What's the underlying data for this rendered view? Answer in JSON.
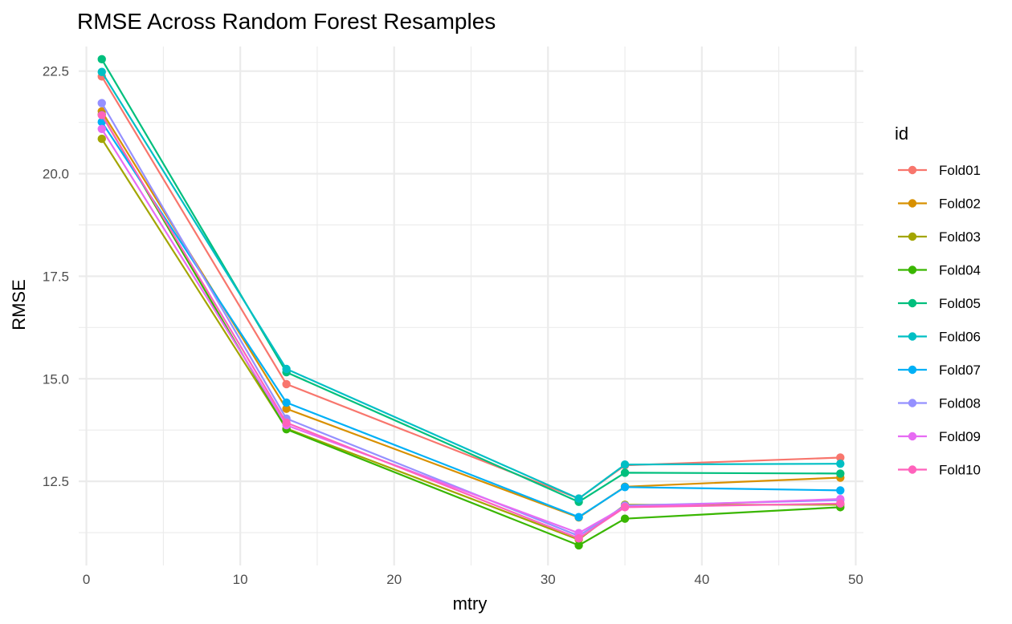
{
  "chart_data": {
    "type": "line",
    "title": "RMSE Across Random Forest Resamples",
    "xlabel": "mtry",
    "ylabel": "RMSE",
    "x": [
      1,
      13,
      32,
      35,
      49
    ],
    "xlim": [
      -0.5,
      50.5
    ],
    "ylim": [
      10.45,
      23.1
    ],
    "x_ticks": [
      0,
      10,
      20,
      30,
      40,
      50
    ],
    "x_minor_ticks": [
      5,
      15,
      25,
      35,
      45
    ],
    "y_ticks": [
      12.5,
      15.0,
      17.5,
      20.0,
      22.5
    ],
    "y_tick_labels": [
      "12.5",
      "15.0",
      "17.5",
      "20.0",
      "22.5"
    ],
    "y_minor_ticks": [
      11.25,
      13.75,
      16.25,
      18.75,
      21.25
    ],
    "grid": true,
    "legend": {
      "title": "id",
      "placement": "right"
    },
    "series": [
      {
        "name": "Fold01",
        "color": "#F8766D",
        "values": [
          22.37,
          14.87,
          12.08,
          12.89,
          13.08
        ]
      },
      {
        "name": "Fold02",
        "color": "#D89000",
        "values": [
          21.52,
          14.27,
          11.62,
          12.37,
          12.59
        ]
      },
      {
        "name": "Fold03",
        "color": "#A3A500",
        "values": [
          20.85,
          13.79,
          11.08,
          11.93,
          11.93
        ]
      },
      {
        "name": "Fold04",
        "color": "#39B600",
        "values": [
          21.44,
          13.77,
          10.94,
          11.59,
          11.87
        ]
      },
      {
        "name": "Fold05",
        "color": "#00BF7D",
        "values": [
          22.79,
          15.16,
          12.0,
          12.71,
          12.69
        ]
      },
      {
        "name": "Fold06",
        "color": "#00BFC4",
        "values": [
          22.48,
          15.24,
          12.08,
          12.91,
          12.93
        ]
      },
      {
        "name": "Fold07",
        "color": "#00B0F6",
        "values": [
          21.26,
          14.42,
          11.63,
          12.36,
          12.28
        ]
      },
      {
        "name": "Fold08",
        "color": "#9590FF",
        "values": [
          21.72,
          14.03,
          11.17,
          11.91,
          12.04
        ]
      },
      {
        "name": "Fold09",
        "color": "#E76BF3",
        "values": [
          21.09,
          13.87,
          11.24,
          11.88,
          12.07
        ]
      },
      {
        "name": "Fold10",
        "color": "#FF62BC",
        "values": [
          21.43,
          13.93,
          11.11,
          11.87,
          11.96
        ]
      }
    ]
  }
}
